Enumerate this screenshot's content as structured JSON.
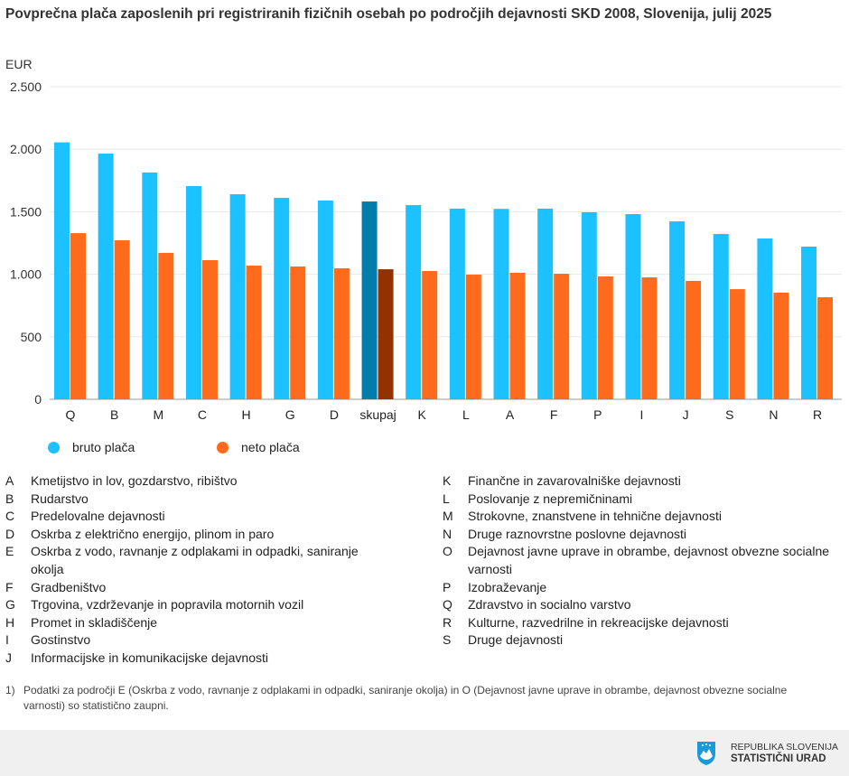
{
  "title": "Povprečna plača zaposlenih pri registriranih fizičnih osebah po področjih dejavnosti SKD 2008, Slovenija, julij 2025",
  "chart_data": {
    "type": "bar",
    "title": "Povprečna plača zaposlenih pri registriranih fizičnih osebah po področjih dejavnosti SKD 2008, Slovenija, julij 2025",
    "ylabel": "EUR",
    "ylim": [
      0,
      2500
    ],
    "yticks": [
      0,
      500,
      1000,
      1500,
      2000,
      2500
    ],
    "ytick_labels": [
      "0",
      "500",
      "1.000",
      "1.500",
      "2.000",
      "2.500"
    ],
    "grid": true,
    "legend_placement": "bottom-left",
    "categories": [
      "Q",
      "B",
      "M",
      "C",
      "H",
      "G",
      "D",
      "skupaj",
      "K",
      "L",
      "A",
      "F",
      "P",
      "I",
      "J",
      "S",
      "N",
      "R"
    ],
    "highlight_category": "skupaj",
    "series": [
      {
        "name": "bruto plača",
        "color": "#1cc1ff",
        "highlight_color": "#007dab",
        "values": [
          2055,
          1965,
          1814,
          1705,
          1640,
          1611,
          1590,
          1582,
          1553,
          1525,
          1523,
          1525,
          1496,
          1481,
          1423,
          1322,
          1286,
          1221
        ]
      },
      {
        "name": "neto plača",
        "color": "#ff6b1c",
        "highlight_color": "#933200",
        "values": [
          1329,
          1272,
          1171,
          1113,
          1069,
          1062,
          1048,
          1040,
          1026,
          997,
          1012,
          1004,
          983,
          975,
          947,
          881,
          853,
          816
        ]
      }
    ]
  },
  "categories_left": [
    {
      "code": "A",
      "label": "Kmetijstvo in lov, gozdarstvo, ribištvo"
    },
    {
      "code": "B",
      "label": "Rudarstvo"
    },
    {
      "code": "C",
      "label": "Predelovalne dejavnosti"
    },
    {
      "code": "D",
      "label": "Oskrba z električno energijo, plinom in paro"
    },
    {
      "code": "E",
      "label": "Oskrba z vodo, ravnanje z odplakami in odpadki, saniranje okolja"
    },
    {
      "code": "F",
      "label": "Gradbeništvo"
    },
    {
      "code": "G",
      "label": "Trgovina, vzdrževanje in popravila motornih vozil"
    },
    {
      "code": "H",
      "label": "Promet in skladiščenje"
    },
    {
      "code": "I",
      "label": "Gostinstvo"
    },
    {
      "code": "J",
      "label": "Informacijske in komunikacijske dejavnosti"
    }
  ],
  "categories_right": [
    {
      "code": "K",
      "label": "Finančne in zavarovalniške dejavnosti"
    },
    {
      "code": "L",
      "label": "Poslovanje z nepremičninami"
    },
    {
      "code": "M",
      "label": "Strokovne, znanstvene in tehnične dejavnosti"
    },
    {
      "code": "N",
      "label": "Druge raznovrstne poslovne dejavnosti"
    },
    {
      "code": "O",
      "label": "Dejavnost javne uprave in obrambe, dejavnost obvezne socialne varnosti"
    },
    {
      "code": "P",
      "label": "Izobraževanje"
    },
    {
      "code": "Q",
      "label": "Zdravstvo in socialno varstvo"
    },
    {
      "code": "R",
      "label": "Kulturne, razvedrilne in rekreacijske dejavnosti"
    },
    {
      "code": "S",
      "label": "Druge dejavnosti"
    }
  ],
  "note": {
    "num": "1)",
    "text": "Podatki za področji E (Oskrba z vodo, ravnanje z odplakami in odpadki, saniranje okolja) in O (Dejavnost javne uprave in obrambe, dejavnost obvezne socialne varnosti) so statistično zaupni."
  },
  "footer": {
    "logo_line1": "REPUBLIKA SLOVENIJA",
    "logo_line2": "STATISTIČNI URAD",
    "logo_icon": "coat-of-arms-icon"
  }
}
